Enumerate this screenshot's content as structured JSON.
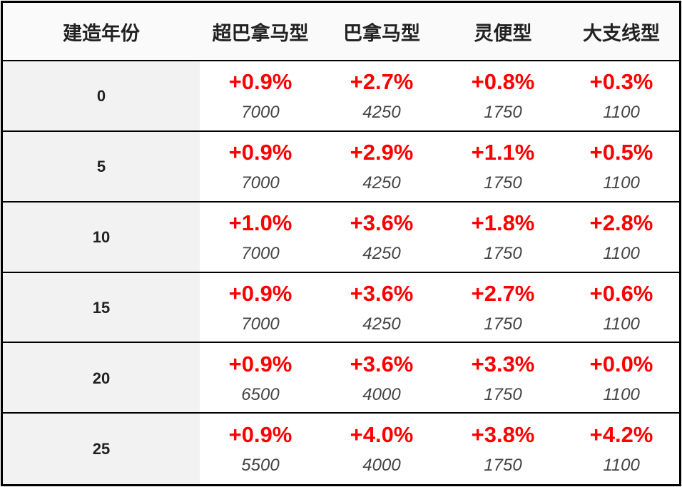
{
  "table": {
    "header": [
      "建造年份",
      "超巴拿马型",
      "巴拿马型",
      "灵便型",
      "大支线型"
    ],
    "rows": [
      {
        "label": "0",
        "cells": [
          [
            "+0.9%",
            "7000"
          ],
          [
            "+2.7%",
            "4250"
          ],
          [
            "+0.8%",
            "1750"
          ],
          [
            "+0.3%",
            "1100"
          ]
        ]
      },
      {
        "label": "5",
        "cells": [
          [
            "+0.9%",
            "7000"
          ],
          [
            "+2.9%",
            "4250"
          ],
          [
            "+1.1%",
            "1750"
          ],
          [
            "+0.5%",
            "1100"
          ]
        ]
      },
      {
        "label": "10",
        "cells": [
          [
            "+1.0%",
            "7000"
          ],
          [
            "+3.6%",
            "4250"
          ],
          [
            "+1.8%",
            "1750"
          ],
          [
            "+2.8%",
            "1100"
          ]
        ]
      },
      {
        "label": "15",
        "cells": [
          [
            "+0.9%",
            "7000"
          ],
          [
            "+3.6%",
            "4250"
          ],
          [
            "+2.7%",
            "1750"
          ],
          [
            "+0.6%",
            "1100"
          ]
        ]
      },
      {
        "label": "20",
        "cells": [
          [
            "+0.9%",
            "6500"
          ],
          [
            "+3.6%",
            "4000"
          ],
          [
            "+3.3%",
            "1750"
          ],
          [
            "+0.0%",
            "1100"
          ]
        ]
      },
      {
        "label": "25",
        "cells": [
          [
            "+0.9%",
            "5500"
          ],
          [
            "+4.0%",
            "4000"
          ],
          [
            "+3.8%",
            "1750"
          ],
          [
            "+4.2%",
            "1100"
          ]
        ]
      }
    ]
  }
}
